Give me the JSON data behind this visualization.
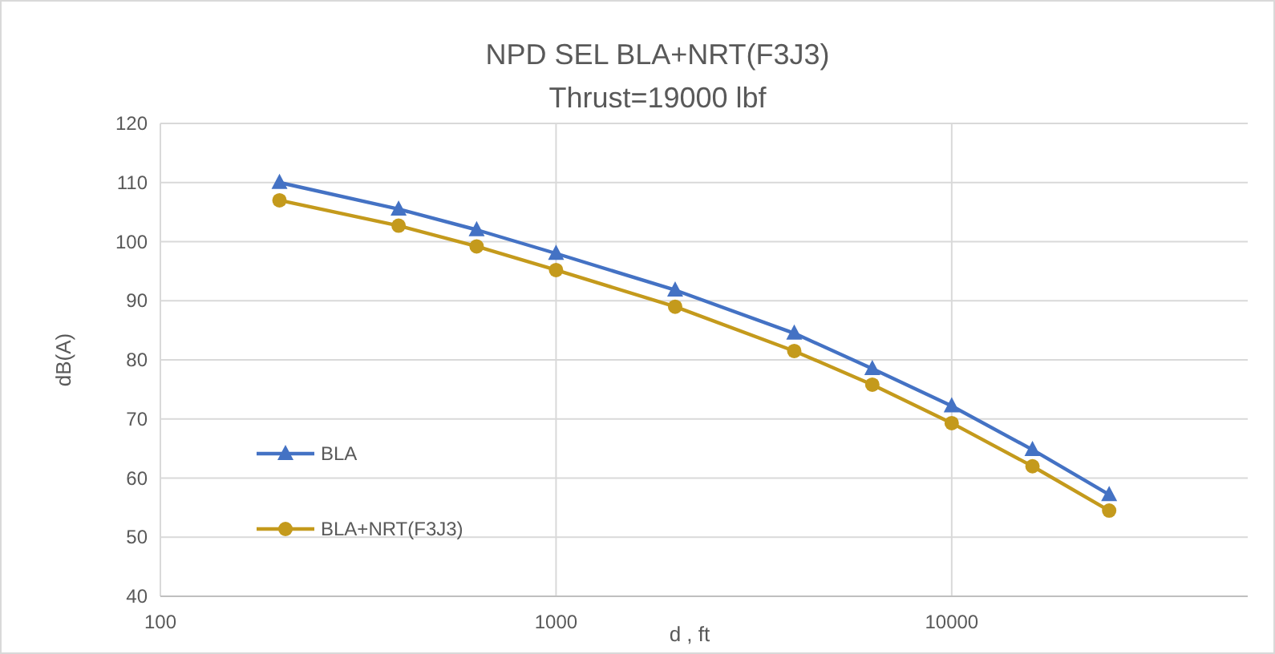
{
  "chart_data": {
    "type": "line",
    "title": "NPD SEL BLA+NRT(F3J3)",
    "subtitle": "Thrust=19000 lbf",
    "xlabel": "d , ft",
    "ylabel": "dB(A)",
    "x": [
      200,
      400,
      630,
      1000,
      2000,
      4000,
      6300,
      10000,
      16000,
      25000
    ],
    "series": [
      {
        "name": "BLA",
        "color": "#4472c4",
        "marker": "triangle",
        "values": [
          110,
          105.5,
          102,
          98,
          91.8,
          84.5,
          78.5,
          72.2,
          64.8,
          57.2
        ]
      },
      {
        "name": "BLA+NRT(F3J3)",
        "color": "#c49a1c",
        "marker": "circle",
        "values": [
          107,
          102.7,
          99.2,
          95.2,
          89,
          81.5,
          75.8,
          69.3,
          62,
          54.5
        ]
      }
    ],
    "log": "x",
    "xlim": [
      100,
      56000
    ],
    "xticks": [
      100,
      1000,
      10000
    ],
    "ylim": [
      40,
      120
    ],
    "yticks": [
      40,
      50,
      60,
      70,
      80,
      90,
      100,
      110,
      120
    ],
    "grid": true,
    "legend": "center left",
    "line_style": "solid"
  }
}
